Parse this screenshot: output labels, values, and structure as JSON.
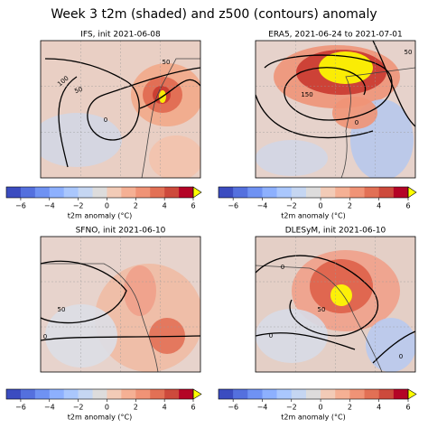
{
  "title": "Week 3 t2m (shaded) and z500 (contours) anomaly",
  "panels": [
    {
      "title": "IFS, init 2021-06-08",
      "contour_labels": [
        "100",
        "50",
        "0",
        "50"
      ]
    },
    {
      "title": "ERA5, 2021-06-24 to 2021-07-01",
      "contour_labels": [
        "50",
        "150",
        "0"
      ]
    },
    {
      "title": "SFNO, init 2021-06-10",
      "contour_labels": [
        "50",
        "0"
      ]
    },
    {
      "title": "DLESyM, init 2021-06-10",
      "contour_labels": [
        "0",
        "50",
        "0",
        "0"
      ]
    }
  ],
  "colorbar": {
    "label": "t2m anomaly (°C)",
    "clim": [
      -7,
      6
    ],
    "extend": "max",
    "ticks": [
      {
        "value": -6,
        "label": "−6"
      },
      {
        "value": -4,
        "label": "−4"
      },
      {
        "value": -2,
        "label": "−2"
      },
      0,
      2,
      4,
      6
    ],
    "colors": [
      "#3b4cc0",
      "#5470de",
      "#6f92f3",
      "#8db0fe",
      "#aac7fd",
      "#c5d6f2",
      "#dddcdc",
      "#f2cbb7",
      "#f5b094",
      "#f09376",
      "#e27055",
      "#cd4a3c",
      "#b40426"
    ],
    "extend_color": "#ffff00"
  }
}
